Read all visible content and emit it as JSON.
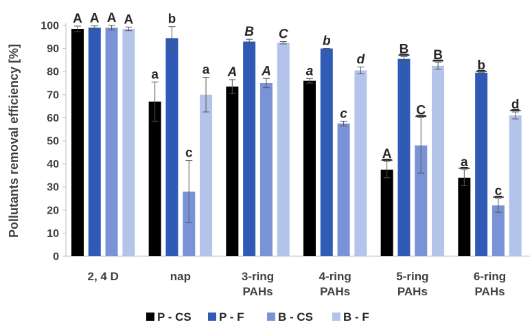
{
  "chart_data": {
    "type": "bar",
    "ylabel": "Pollutants removal efficiency [%]",
    "ylim": [
      0,
      100
    ],
    "yticks": [
      0,
      10,
      20,
      30,
      40,
      50,
      60,
      70,
      80,
      90,
      100
    ],
    "grid": false,
    "legend_position": "bottom",
    "categories": [
      [
        "2, 4 D"
      ],
      [
        "nap"
      ],
      [
        "3-ring",
        "PAHs"
      ],
      [
        "4-ring",
        "PAHs"
      ],
      [
        "5-ring",
        "PAHs"
      ],
      [
        "6-ring",
        "PAHs"
      ]
    ],
    "colors": {
      "P - CS": "#000000",
      "P - F": "#2f5bb7",
      "B - CS": "#7a92d6",
      "B - F": "#b4c3ea"
    },
    "series": [
      {
        "name": "P - CS",
        "values": [
          98.5,
          67,
          73.5,
          76,
          37.5,
          34
        ],
        "errors": [
          1.2,
          8.5,
          3,
          1,
          3.5,
          3.5
        ],
        "labels": [
          "A",
          "a",
          "A",
          "a",
          "A",
          "a"
        ]
      },
      {
        "name": "P - F",
        "values": [
          99,
          94.5,
          93,
          90,
          85.5,
          79.5
        ],
        "errors": [
          0.8,
          5,
          1,
          0,
          1,
          0
        ],
        "labels": [
          "A",
          "b",
          "B",
          "b",
          "B",
          "b"
        ]
      },
      {
        "name": "B - CS",
        "values": [
          99,
          28,
          75,
          57.5,
          48,
          22
        ],
        "errors": [
          1,
          13.5,
          2,
          1,
          12,
          3
        ],
        "labels": [
          "A",
          "c",
          "A",
          "c",
          "C",
          "c"
        ]
      },
      {
        "name": "B - F",
        "values": [
          98.5,
          70,
          92.5,
          80.5,
          82.5,
          61
        ],
        "errors": [
          0.8,
          7.5,
          0.5,
          1.5,
          1.5,
          1.5
        ],
        "labels": [
          "A",
          "a",
          "C",
          "d",
          "B",
          "d"
        ]
      }
    ],
    "label_styles": [
      "normal",
      "normal",
      "italic",
      "bold-italic",
      "underline",
      "underline"
    ]
  }
}
